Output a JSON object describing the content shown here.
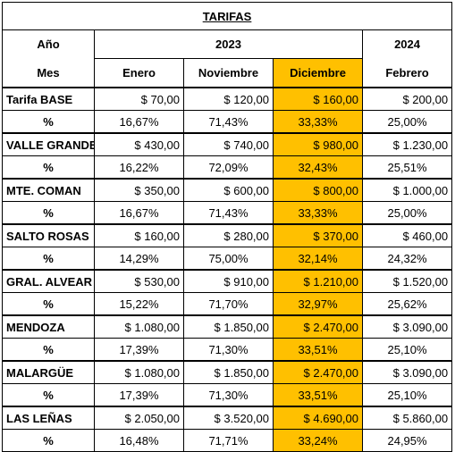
{
  "title": "TARIFAS",
  "year_row": {
    "label": "Año",
    "years": [
      "2023",
      "2024"
    ]
  },
  "month_row": {
    "label": "Mes",
    "months": [
      "Enero",
      "Noviembre",
      "Diciembre",
      "Febrero"
    ]
  },
  "rows": [
    {
      "name": "Tarifa BASE",
      "values": [
        "$ 70,00",
        "$ 120,00",
        "$ 160,00",
        "$ 200,00"
      ],
      "percent_label": "%",
      "percents": [
        "16,67%",
        "71,43%",
        "33,33%",
        "25,00%"
      ]
    },
    {
      "name": "VALLE GRANDE",
      "values": [
        "$ 430,00",
        "$ 740,00",
        "$ 980,00",
        "$ 1.230,00"
      ],
      "percent_label": "%",
      "percents": [
        "16,22%",
        "72,09%",
        "32,43%",
        "25,51%"
      ]
    },
    {
      "name": "MTE. COMAN",
      "values": [
        "$ 350,00",
        "$ 600,00",
        "$ 800,00",
        "$ 1.000,00"
      ],
      "percent_label": "%",
      "percents": [
        "16,67%",
        "71,43%",
        "33,33%",
        "25,00%"
      ]
    },
    {
      "name": "SALTO ROSAS",
      "values": [
        "$ 160,00",
        "$ 280,00",
        "$ 370,00",
        "$ 460,00"
      ],
      "percent_label": "%",
      "percents": [
        "14,29%",
        "75,00%",
        "32,14%",
        "24,32%"
      ]
    },
    {
      "name": "GRAL. ALVEAR",
      "values": [
        "$ 530,00",
        "$ 910,00",
        "$ 1.210,00",
        "$ 1.520,00"
      ],
      "percent_label": "%",
      "percents": [
        "15,22%",
        "71,70%",
        "32,97%",
        "25,62%"
      ]
    },
    {
      "name": "MENDOZA",
      "values": [
        "$ 1.080,00",
        "$ 1.850,00",
        "$ 2.470,00",
        "$ 3.090,00"
      ],
      "percent_label": "%",
      "percents": [
        "17,39%",
        "71,30%",
        "33,51%",
        "25,10%"
      ]
    },
    {
      "name": "MALARGÜE",
      "values": [
        "$ 1.080,00",
        "$ 1.850,00",
        "$ 2.470,00",
        "$ 3.090,00"
      ],
      "percent_label": "%",
      "percents": [
        "17,39%",
        "71,30%",
        "33,51%",
        "25,10%"
      ]
    },
    {
      "name": "LAS LEÑAS",
      "values": [
        "$ 2.050,00",
        "$ 3.520,00",
        "$ 4.690,00",
        "$ 5.860,00"
      ],
      "percent_label": "%",
      "percents": [
        "16,48%",
        "71,71%",
        "33,24%",
        "24,95%"
      ]
    }
  ]
}
